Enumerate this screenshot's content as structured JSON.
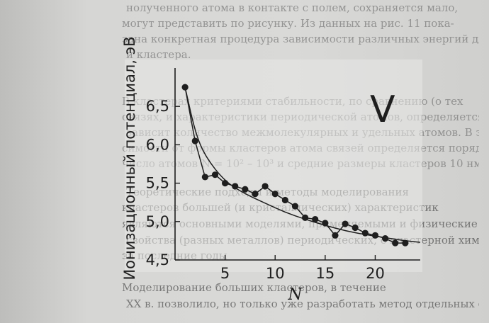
{
  "background_text": [
    "нолученного атома в контакте с полем, сохраняется мало,",
    "могут представить по рисунку. Из данных на рис. 11 пока-",
    "зана конкретная процедура зависимости различных энергий для атома",
    "и кластера.",
    "В кластерах критериями стабильности, по сравнению (о тех",
    "связях, и характеристики периодической атомов, определяется",
    "зависит количество межмолекулярных и удельных атомов. В зави-",
    "симости от формы кластеров атома связей определяется порядок",
    "число атомов N = 10² – 10³ и средние размеры кластеров 10 нм",
    "Теоретические подходы и методы моделирования",
    "кластеров большей (и кристаллических) характеристик",
    "являются основными моделями, применяемыми и физические",
    "свойства (разных металлов) периодических, с кластерной химией",
    "за последние годы",
    "Моделирование больших кластеров, в течение",
    "XX в. позволило, но только уже разработать метод отдельных структур"
  ],
  "chart_data": {
    "type": "line",
    "title": "",
    "panel_label": "V",
    "xlabel": "N",
    "ylabel": "Ионизационный потенциал, эВ",
    "xlim": [
      0,
      24.5
    ],
    "ylim": [
      4.5,
      7.0
    ],
    "x_ticks": [
      5,
      10,
      15,
      20
    ],
    "x_tick_labels": [
      "5",
      "10",
      "15",
      "20"
    ],
    "y_ticks": [
      4.5,
      5.0,
      5.5,
      6.0,
      6.5
    ],
    "y_tick_labels": [
      "4,5",
      "5,0",
      "5,5",
      "6,0",
      "6,5"
    ],
    "grid": false,
    "legend": "none",
    "series": [
      {
        "style": "markers-with-line",
        "x": [
          1,
          2,
          3,
          4,
          5,
          6,
          7,
          8,
          9,
          10,
          11,
          12,
          13,
          14,
          15,
          16,
          17,
          18,
          19,
          20,
          21,
          22,
          23
        ],
        "y": [
          6.75,
          6.05,
          5.58,
          5.61,
          5.5,
          5.46,
          5.42,
          5.36,
          5.46,
          5.36,
          5.28,
          5.2,
          5.05,
          5.03,
          4.98,
          4.82,
          4.97,
          4.92,
          4.85,
          4.82,
          4.78,
          4.72,
          4.72
        ]
      },
      {
        "style": "smooth-fit",
        "x": [
          1,
          2,
          3,
          5,
          7,
          9,
          11,
          13,
          15,
          17,
          19,
          21,
          23,
          24.5
        ],
        "y": [
          6.75,
          6.17,
          5.85,
          5.52,
          5.36,
          5.24,
          5.12,
          5.03,
          4.95,
          4.88,
          4.83,
          4.79,
          4.75,
          4.73
        ]
      }
    ]
  },
  "colors": {
    "ink": "#1e1e1e",
    "paper": "#d7d7d5",
    "faded_text": "#6a6a6a"
  }
}
